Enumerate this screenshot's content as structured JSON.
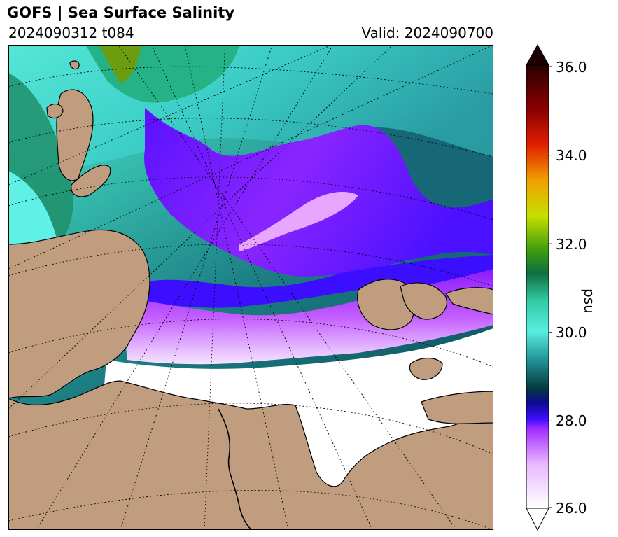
{
  "header": {
    "title": "GOFS  |  Sea Surface Salinity",
    "run": "2024090312 t084",
    "valid": "Valid: 2024090700"
  },
  "map": {
    "variable": "sea-surface-salinity",
    "colors": {
      "land": "#c19d7f",
      "ice_white": "#ffffff",
      "fresh_violet": "#a43cff",
      "blue": "#3f0fff",
      "dark_teal": "#0b4f58",
      "teal": "#2aa6a6",
      "cyan": "#58eee0",
      "green": "#1f9b4b",
      "olive": "#5f9a10"
    }
  },
  "colorbar": {
    "label": "psu",
    "min": 26.0,
    "max": 36.0,
    "extend": "both",
    "ticks": [
      "26.0",
      "28.0",
      "30.0",
      "32.0",
      "34.0",
      "36.0"
    ]
  }
}
